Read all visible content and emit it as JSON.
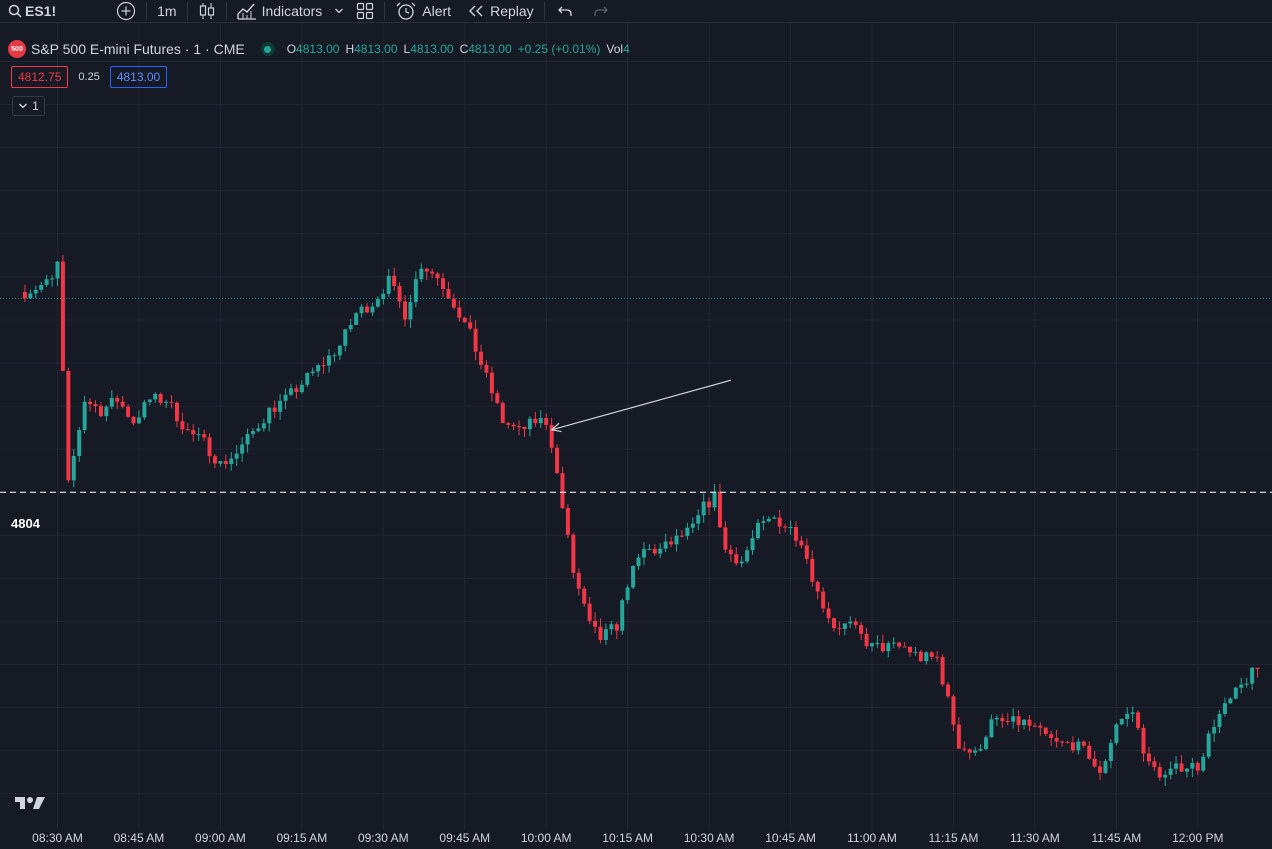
{
  "toolbar": {
    "symbol": "ES1!",
    "interval": "1m",
    "indicators_label": "Indicators",
    "alert_label": "Alert",
    "replay_label": "Replay"
  },
  "legend": {
    "title": "S&P 500 E-mini Futures · 1 · CME",
    "badge": "500",
    "open_label": "O",
    "open": "4813.00",
    "high_label": "H",
    "high": "4813.00",
    "low_label": "L",
    "low": "4813.00",
    "close_label": "C",
    "close": "4813.00",
    "change": "+0.25 (+0.01%)",
    "vol_label": "Vol",
    "vol": "4"
  },
  "quote": {
    "bid": "4812.75",
    "spread": "0.25",
    "ask": "4813.00"
  },
  "collapse_label": "1",
  "price_line_label": "4804",
  "colors": {
    "up": "#26a69a",
    "down": "#f23645",
    "background": "#161a25",
    "grid": "#232632"
  },
  "chart_data": {
    "type": "candlestick",
    "x_labels": [
      "08:30 AM",
      "08:45 AM",
      "09:00 AM",
      "09:15 AM",
      "09:30 AM",
      "09:45 AM",
      "10:00 AM",
      "10:15 AM",
      "10:30 AM",
      "10:45 AM",
      "11:00 AM",
      "11:15 AM",
      "11:30 AM",
      "11:45 AM",
      "12:00 PM"
    ],
    "horizontal_line": 4804,
    "current_price": 4813.0,
    "price_range": [
      4788.5,
      4825.0
    ],
    "close_path_keypoints": [
      {
        "time": "08:24",
        "price": 4813.3
      },
      {
        "time": "08:29",
        "price": 4813.8
      },
      {
        "time": "08:30",
        "price": 4814.6
      },
      {
        "time": "08:32",
        "price": 4804.3
      },
      {
        "time": "08:35",
        "price": 4808.3
      },
      {
        "time": "08:38",
        "price": 4807.8
      },
      {
        "time": "08:41",
        "price": 4808.3
      },
      {
        "time": "08:44",
        "price": 4807.3
      },
      {
        "time": "08:47",
        "price": 4808.3
      },
      {
        "time": "08:50",
        "price": 4808.3
      },
      {
        "time": "08:54",
        "price": 4806.8
      },
      {
        "time": "08:57",
        "price": 4806.3
      },
      {
        "time": "09:00",
        "price": 4805.3
      },
      {
        "time": "09:03",
        "price": 4805.8
      },
      {
        "time": "09:06",
        "price": 4806.8
      },
      {
        "time": "09:09",
        "price": 4807.8
      },
      {
        "time": "09:12",
        "price": 4808.3
      },
      {
        "time": "09:16",
        "price": 4809.3
      },
      {
        "time": "09:19",
        "price": 4810.0
      },
      {
        "time": "09:22",
        "price": 4810.8
      },
      {
        "time": "09:25",
        "price": 4812.3
      },
      {
        "time": "09:28",
        "price": 4812.8
      },
      {
        "time": "09:31",
        "price": 4813.8
      },
      {
        "time": "09:34",
        "price": 4812.3
      },
      {
        "time": "09:37",
        "price": 4814.6
      },
      {
        "time": "09:40",
        "price": 4814.0
      },
      {
        "time": "09:43",
        "price": 4812.8
      },
      {
        "time": "09:46",
        "price": 4811.3
      },
      {
        "time": "09:49",
        "price": 4809.3
      },
      {
        "time": "09:52",
        "price": 4807.3
      },
      {
        "time": "09:55",
        "price": 4806.8
      },
      {
        "time": "09:58",
        "price": 4807.3
      },
      {
        "time": "10:00",
        "price": 4807.3
      },
      {
        "time": "10:01",
        "price": 4806.3
      },
      {
        "time": "10:02",
        "price": 4804.8
      },
      {
        "time": "10:05",
        "price": 4800.3
      },
      {
        "time": "10:08",
        "price": 4797.8
      },
      {
        "time": "10:10",
        "price": 4797.2
      },
      {
        "time": "10:13",
        "price": 4797.8
      },
      {
        "time": "10:15",
        "price": 4799.8
      },
      {
        "time": "10:18",
        "price": 4801.3
      },
      {
        "time": "10:21",
        "price": 4801.3
      },
      {
        "time": "10:24",
        "price": 4801.8
      },
      {
        "time": "10:27",
        "price": 4802.3
      },
      {
        "time": "10:29",
        "price": 4803.3
      },
      {
        "time": "10:31",
        "price": 4803.8
      },
      {
        "time": "10:33",
        "price": 4801.3
      },
      {
        "time": "10:36",
        "price": 4800.8
      },
      {
        "time": "10:39",
        "price": 4802.3
      },
      {
        "time": "10:42",
        "price": 4802.8
      },
      {
        "time": "10:45",
        "price": 4802.3
      },
      {
        "time": "10:47",
        "price": 4801.8
      },
      {
        "time": "10:50",
        "price": 4799.3
      },
      {
        "time": "10:53",
        "price": 4797.8
      },
      {
        "time": "10:56",
        "price": 4797.8
      },
      {
        "time": "11:00",
        "price": 4796.8
      },
      {
        "time": "11:03",
        "price": 4796.8
      },
      {
        "time": "11:06",
        "price": 4796.8
      },
      {
        "time": "11:09",
        "price": 4796.3
      },
      {
        "time": "11:12",
        "price": 4796.3
      },
      {
        "time": "11:13",
        "price": 4795.3
      },
      {
        "time": "11:16",
        "price": 4792.3
      },
      {
        "time": "11:19",
        "price": 4791.8
      },
      {
        "time": "11:22",
        "price": 4793.3
      },
      {
        "time": "11:25",
        "price": 4793.3
      },
      {
        "time": "11:28",
        "price": 4793.3
      },
      {
        "time": "11:31",
        "price": 4792.8
      },
      {
        "time": "11:34",
        "price": 4792.3
      },
      {
        "time": "11:37",
        "price": 4792.3
      },
      {
        "time": "11:40",
        "price": 4791.8
      },
      {
        "time": "11:42",
        "price": 4790.8
      },
      {
        "time": "11:45",
        "price": 4793.3
      },
      {
        "time": "11:48",
        "price": 4793.8
      },
      {
        "time": "11:51",
        "price": 4791.3
      },
      {
        "time": "11:54",
        "price": 4790.8
      },
      {
        "time": "11:57",
        "price": 4791.3
      },
      {
        "time": "12:00",
        "price": 4791.3
      },
      {
        "time": "12:03",
        "price": 4793.3
      },
      {
        "time": "12:06",
        "price": 4794.3
      },
      {
        "time": "12:09",
        "price": 4795.3
      },
      {
        "time": "12:11",
        "price": 4795.8
      }
    ],
    "annotation": {
      "type": "arrow",
      "from": {
        "time": "10:34",
        "price": 4809.2
      },
      "to": {
        "time": "10:01",
        "price": 4806.9
      }
    }
  }
}
